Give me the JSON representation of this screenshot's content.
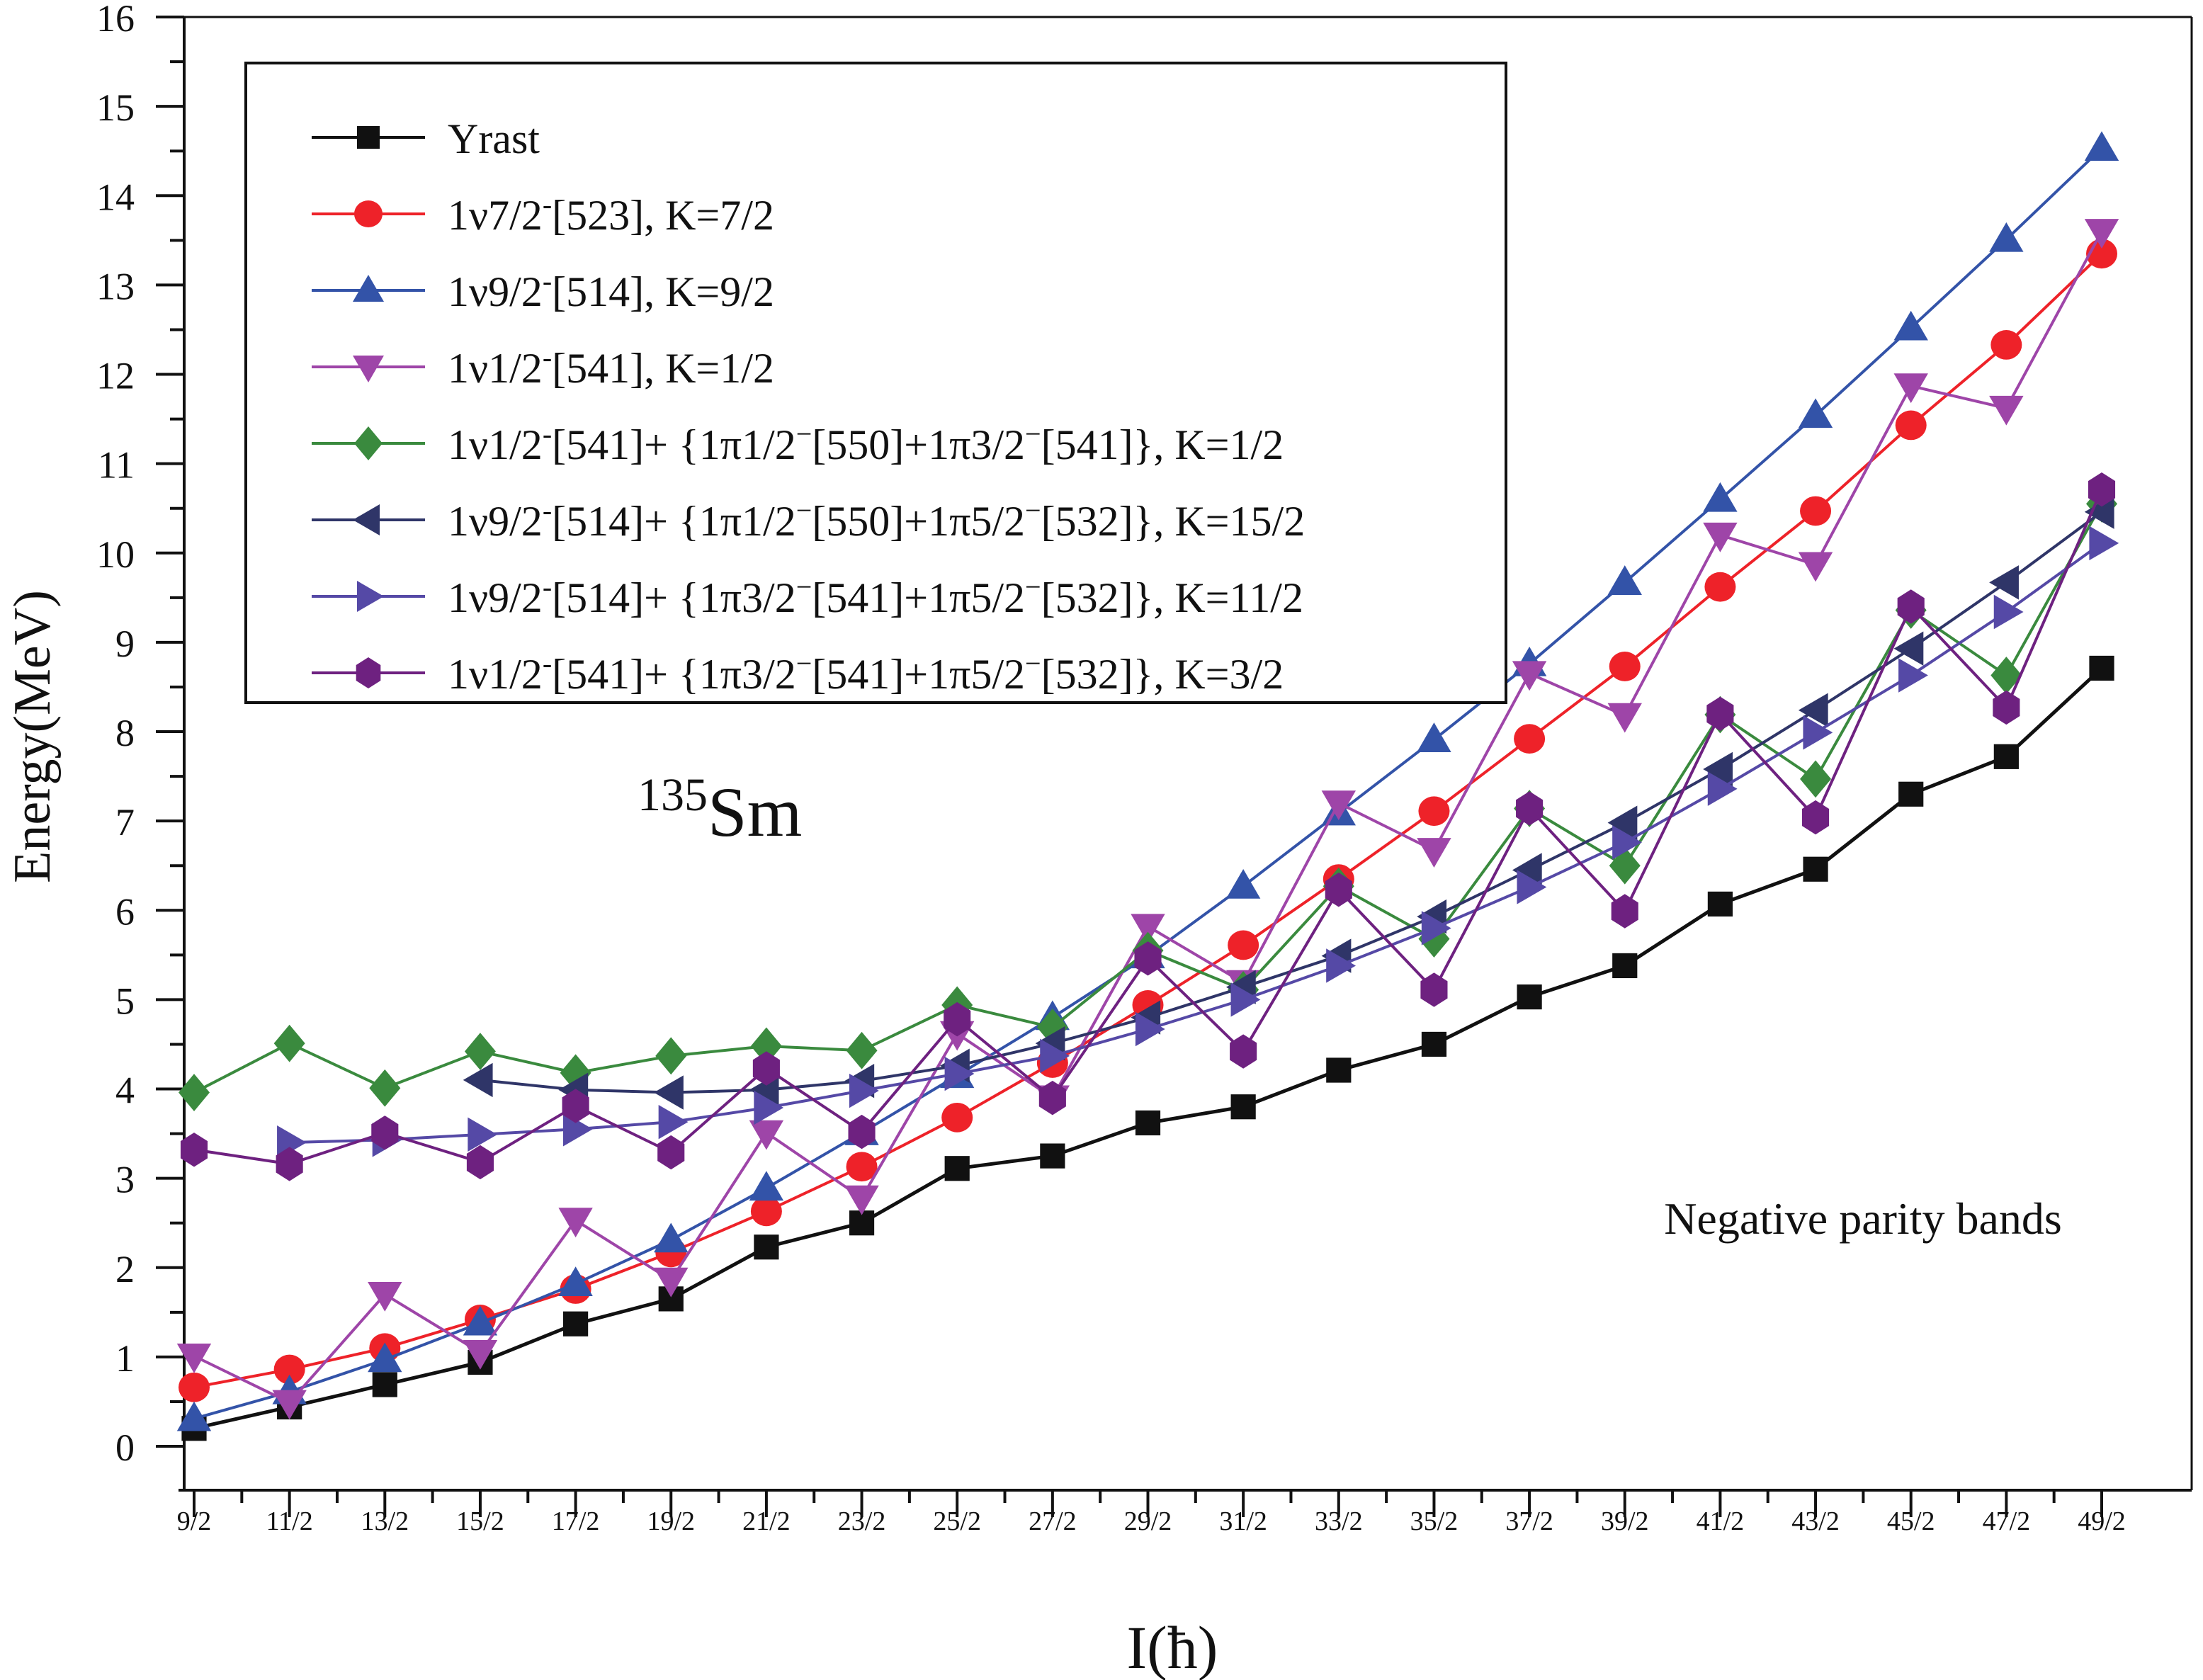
{
  "chart_data": {
    "type": "line",
    "title": "",
    "xlabel": "I(ħ)",
    "ylabel": "Energy(MeV)",
    "ylim": [
      -0.5,
      16
    ],
    "yticks": [
      "0",
      "1",
      "2",
      "3",
      "4",
      "5",
      "6",
      "7",
      "8",
      "9",
      "10",
      "11",
      "12",
      "13",
      "14",
      "15",
      "16"
    ],
    "categories": [
      "9/2",
      "11/2",
      "13/2",
      "15/2",
      "17/2",
      "19/2",
      "21/2",
      "23/2",
      "25/2",
      "27/2",
      "29/2",
      "31/2",
      "33/2",
      "35/2",
      "37/2",
      "39/2",
      "41/2",
      "43/2",
      "45/2",
      "47/2",
      "49/2"
    ],
    "grid": false,
    "legend_position": "top-left",
    "annotations": {
      "nucleus_mass": "135",
      "nucleus_symbol": "Sm",
      "note": "Negative parity bands"
    },
    "series": [
      {
        "name": "Yrast",
        "legend": {
          "main": "Yrast"
        },
        "color": "#111111",
        "marker": "square",
        "values": [
          0.2,
          0.44,
          0.69,
          0.94,
          1.37,
          1.65,
          2.23,
          2.5,
          3.11,
          3.25,
          3.62,
          3.8,
          4.21,
          4.5,
          5.03,
          5.38,
          6.07,
          6.46,
          7.3,
          7.72,
          8.71
        ]
      },
      {
        "name": "1ν7/2⁻[523], K=7/2",
        "legend": {
          "main": "1ν7/2",
          "sup": "-",
          "rest": "[523], K=7/2"
        },
        "color": "#ee2229",
        "marker": "circle",
        "values": [
          0.66,
          0.86,
          1.1,
          1.42,
          1.76,
          2.17,
          2.63,
          3.13,
          3.68,
          4.29,
          4.94,
          5.61,
          6.35,
          7.11,
          7.92,
          8.73,
          9.62,
          10.47,
          11.43,
          12.33,
          13.35
        ]
      },
      {
        "name": "1ν9/2⁻[514], K=9/2",
        "legend": {
          "main": "1ν9/2",
          "sup": "-",
          "rest": "[514], K=9/2"
        },
        "color": "#3353a8",
        "marker": "triangle-up",
        "values": [
          0.31,
          0.61,
          0.97,
          1.38,
          1.82,
          2.31,
          2.89,
          3.51,
          4.15,
          4.8,
          5.49,
          6.27,
          7.09,
          7.91,
          8.76,
          9.67,
          10.6,
          11.54,
          12.52,
          13.51,
          14.53
        ]
      },
      {
        "name": "1ν1/2⁻[541], K=1/2",
        "legend": {
          "main": "1ν1/2",
          "sup": "-",
          "rest": "[541], K=1/2"
        },
        "color": "#9e45a8",
        "marker": "triangle-down",
        "values": [
          1.01,
          0.49,
          1.7,
          1.05,
          2.53,
          1.86,
          3.51,
          2.78,
          4.62,
          3.9,
          5.82,
          5.19,
          7.2,
          6.67,
          8.65,
          8.18,
          10.2,
          9.87,
          11.87,
          11.62,
          13.6
        ]
      },
      {
        "name": "1ν1/2⁻[541]+ {1π1/2⁻[550]+1π3/2⁻[541]}, K=1/2",
        "legend": {
          "main": "1ν1/2",
          "sup": "-",
          "rest": "[541]+ {1π1/2",
          "sup2": "−",
          "rest2": "[550]+1π3/2",
          "sup3": "−",
          "rest3": "[541]}, K=1/2"
        },
        "color": "#3a8a3e",
        "marker": "diamond",
        "values": [
          3.96,
          4.51,
          4.01,
          4.42,
          4.18,
          4.37,
          4.48,
          4.43,
          4.94,
          4.69,
          5.55,
          5.11,
          6.27,
          5.68,
          7.14,
          6.5,
          8.19,
          7.47,
          9.36,
          8.63,
          10.55
        ]
      },
      {
        "name": "1ν9/2⁻[514]+ {1π1/2⁻[550]+1π5/2⁻[532]}, K=15/2",
        "legend": {
          "main": "1ν9/2",
          "sup": "-",
          "rest": "[514]+ {1π1/2",
          "sup2": "−",
          "rest2": "[550]+1π5/2",
          "sup3": "−",
          "rest3": "[532]}, K=15/2"
        },
        "color": "#2f3568",
        "marker": "triangle-left",
        "values": [
          null,
          null,
          null,
          4.1,
          3.99,
          3.96,
          3.99,
          4.09,
          4.26,
          4.51,
          4.8,
          5.14,
          5.49,
          5.93,
          6.45,
          6.98,
          7.58,
          8.24,
          8.93,
          9.67,
          10.46
        ]
      },
      {
        "name": "1ν9/2⁻[514]+ {1π3/2⁻[541]+1π5/2⁻[532]}, K=11/2",
        "legend": {
          "main": "1ν9/2",
          "sup": "-",
          "rest": "[514]+ {1π3/2",
          "sup2": "−",
          "rest2": "[541]+1π5/2",
          "sup3": "−",
          "rest3": "[532]}, K=11/2"
        },
        "color": "#5549a6",
        "marker": "triangle-right",
        "values": [
          null,
          3.4,
          3.43,
          3.49,
          3.55,
          3.63,
          3.79,
          3.98,
          4.17,
          4.37,
          4.67,
          5.0,
          5.38,
          5.8,
          6.26,
          6.76,
          7.36,
          7.99,
          8.63,
          9.34,
          10.11
        ]
      },
      {
        "name": "1ν1/2⁻[541]+ {1π3/2⁻[541]+1π5/2⁻[532]}, K=3/2",
        "legend": {
          "main": "1ν1/2",
          "sup": "-",
          "rest": "[541]+ {1π3/2",
          "sup2": "−",
          "rest2": "[541]+1π5/2",
          "sup3": "−",
          "rest3": "[532]}, K=3/2"
        },
        "color": "#6e2180",
        "marker": "hexagon",
        "values": [
          3.32,
          3.16,
          3.51,
          3.18,
          3.81,
          3.29,
          4.23,
          3.52,
          4.78,
          3.9,
          5.46,
          4.42,
          6.23,
          5.11,
          7.14,
          5.99,
          8.2,
          7.04,
          9.4,
          8.27,
          10.71
        ]
      }
    ]
  }
}
